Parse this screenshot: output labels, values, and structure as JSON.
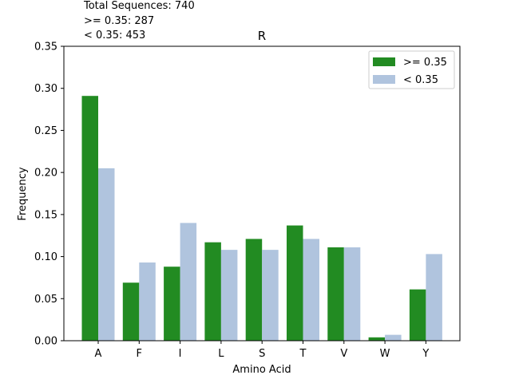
{
  "notes": {
    "line1": "Total Sequences: 740",
    "line2": ">= 0.35: 287",
    "line3": "< 0.35: 453"
  },
  "chart_data": {
    "type": "bar",
    "title": "R",
    "xlabel": "Amino Acid",
    "ylabel": "Frequency",
    "categories": [
      "A",
      "F",
      "I",
      "L",
      "S",
      "T",
      "V",
      "W",
      "Y"
    ],
    "series": [
      {
        "name": ">= 0.35",
        "color": "#228b22",
        "values": [
          0.291,
          0.069,
          0.088,
          0.117,
          0.121,
          0.137,
          0.111,
          0.004,
          0.061
        ]
      },
      {
        "name": "< 0.35",
        "color": "#b0c4de",
        "values": [
          0.205,
          0.093,
          0.14,
          0.108,
          0.108,
          0.121,
          0.111,
          0.007,
          0.103
        ]
      }
    ],
    "ylim": [
      0,
      0.35
    ],
    "yticks": [
      "0.00",
      "0.05",
      "0.10",
      "0.15",
      "0.20",
      "0.25",
      "0.30",
      "0.35"
    ],
    "grid": false,
    "legend": "top-right"
  }
}
